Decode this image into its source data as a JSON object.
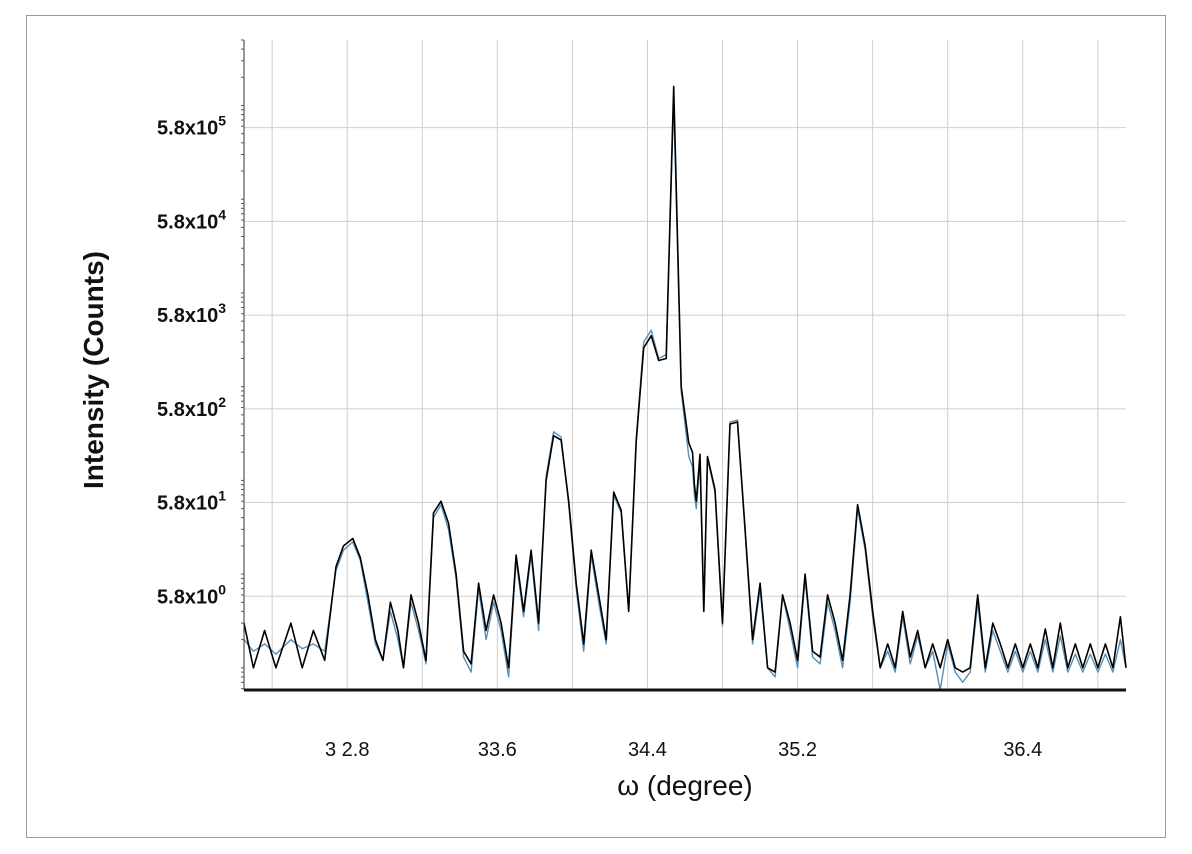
{
  "chart_data": {
    "type": "line",
    "title": "",
    "xlabel": "ω (degree)",
    "ylabel": "Intensity (Counts)",
    "xlim": [
      32.25,
      36.95
    ],
    "x_ticks": [
      {
        "value": 32.8,
        "label": "3 2.8"
      },
      {
        "value": 33.6,
        "label": "33.6"
      },
      {
        "value": 34.4,
        "label": "34.4"
      },
      {
        "value": 35.2,
        "label": "35.2"
      },
      {
        "value": 36.4,
        "label": "36.4"
      }
    ],
    "y_scale": "log",
    "ylim": [
      0.58,
      5000000
    ],
    "y_ticks": [
      {
        "value": 5.8,
        "base": "5.8x10",
        "exp": "0"
      },
      {
        "value": 58,
        "base": "5.8x10",
        "exp": "1"
      },
      {
        "value": 580,
        "base": "5.8x10",
        "exp": "2"
      },
      {
        "value": 5800,
        "base": "5.8x10",
        "exp": "3"
      },
      {
        "value": 58000,
        "base": "5.8x10",
        "exp": "4"
      },
      {
        "value": 580000,
        "base": "5.8x10",
        "exp": "5"
      }
    ],
    "grid": true,
    "series": [
      {
        "color": "#000000",
        "x": [
          32.25,
          32.3,
          32.36,
          32.42,
          32.5,
          32.56,
          32.62,
          32.68,
          32.74,
          32.78,
          32.83,
          32.87,
          32.91,
          32.95,
          32.99,
          33.03,
          33.07,
          33.1,
          33.14,
          33.18,
          33.22,
          33.26,
          33.3,
          33.34,
          33.38,
          33.42,
          33.46,
          33.5,
          33.54,
          33.58,
          33.62,
          33.66,
          33.7,
          33.74,
          33.78,
          33.82,
          33.86,
          33.9,
          33.94,
          33.98,
          34.02,
          34.06,
          34.1,
          34.14,
          34.18,
          34.22,
          34.26,
          34.3,
          34.34,
          34.38,
          34.42,
          34.46,
          34.5,
          34.54,
          34.58,
          34.62,
          34.64,
          34.65,
          34.66,
          34.68,
          34.7,
          34.72,
          34.76,
          34.8,
          34.84,
          34.88,
          34.92,
          34.96,
          35.0,
          35.04,
          35.08,
          35.12,
          35.16,
          35.2,
          35.24,
          35.28,
          35.32,
          35.36,
          35.4,
          35.44,
          35.48,
          35.52,
          35.56,
          35.6,
          35.64,
          35.68,
          35.72,
          35.76,
          35.8,
          35.84,
          35.88,
          35.92,
          35.96,
          36.0,
          36.04,
          36.08,
          36.12,
          36.16,
          36.2,
          36.24,
          36.28,
          36.32,
          36.36,
          36.4,
          36.44,
          36.48,
          36.52,
          36.56,
          36.6,
          36.64,
          36.68,
          36.72,
          36.76,
          36.8,
          36.84,
          36.88,
          36.92,
          36.95
        ],
        "y": [
          3.0,
          1.0,
          2.5,
          1.0,
          3.0,
          1.0,
          2.5,
          1.2,
          12,
          20,
          24,
          15,
          6,
          2,
          1.2,
          5,
          2.5,
          1,
          6,
          3,
          1.2,
          45,
          60,
          35,
          10,
          1.5,
          1.1,
          8,
          2.5,
          6,
          3,
          1,
          16,
          4,
          18,
          3,
          100,
          300,
          270,
          60,
          8,
          1.8,
          18,
          6,
          2,
          75,
          48,
          4,
          260,
          2600,
          3500,
          1900,
          2000,
          1600000,
          1000,
          250,
          200,
          90,
          60,
          190,
          4,
          180,
          80,
          3,
          400,
          420,
          30,
          2,
          8,
          1,
          0.9,
          6,
          3,
          1.2,
          10,
          1.5,
          1.3,
          6,
          3,
          1.2,
          6,
          55,
          20,
          4,
          1.0,
          1.8,
          1.0,
          4,
          1.3,
          2.5,
          1.0,
          1.8,
          1.0,
          2.0,
          1.0,
          0.9,
          1.0,
          6,
          1.0,
          3,
          1.8,
          1.0,
          1.8,
          1.0,
          1.8,
          1.0,
          2.6,
          1.0,
          3,
          1.0,
          1.8,
          1.0,
          1.8,
          1.0,
          1.8,
          1.0,
          3.5,
          1.0
        ]
      },
      {
        "color": "#5a8fb5",
        "x": [
          32.25,
          32.3,
          32.36,
          32.42,
          32.5,
          32.56,
          32.62,
          32.68,
          32.74,
          32.78,
          32.83,
          32.87,
          32.91,
          32.95,
          32.99,
          33.03,
          33.07,
          33.1,
          33.14,
          33.18,
          33.22,
          33.26,
          33.3,
          33.34,
          33.38,
          33.42,
          33.46,
          33.5,
          33.54,
          33.58,
          33.62,
          33.66,
          33.7,
          33.74,
          33.78,
          33.82,
          33.86,
          33.9,
          33.94,
          33.98,
          34.02,
          34.06,
          34.1,
          34.14,
          34.18,
          34.22,
          34.26,
          34.3,
          34.34,
          34.38,
          34.42,
          34.46,
          34.5,
          34.54,
          34.58,
          34.62,
          34.64,
          34.65,
          34.66,
          34.68,
          34.7,
          34.72,
          34.76,
          34.8,
          34.84,
          34.88,
          34.92,
          34.96,
          35.0,
          35.04,
          35.08,
          35.12,
          35.16,
          35.2,
          35.24,
          35.28,
          35.32,
          35.36,
          35.4,
          35.44,
          35.48,
          35.52,
          35.56,
          35.6,
          35.64,
          35.68,
          35.72,
          35.76,
          35.8,
          35.84,
          35.88,
          35.92,
          35.96,
          36.0,
          36.04,
          36.08,
          36.12,
          36.16,
          36.2,
          36.24,
          36.28,
          36.32,
          36.36,
          36.4,
          36.44,
          36.48,
          36.52,
          36.56,
          36.6,
          36.64,
          36.68,
          36.72,
          36.76,
          36.8,
          36.84,
          36.88,
          36.92,
          36.95
        ],
        "y": [
          2.0,
          1.5,
          1.8,
          1.4,
          2.0,
          1.6,
          1.8,
          1.5,
          11,
          18,
          22,
          14,
          5,
          1.8,
          1.2,
          4,
          2,
          1,
          5,
          2.5,
          1.1,
          40,
          55,
          30,
          9,
          1.3,
          0.9,
          7,
          2,
          5,
          2.5,
          0.8,
          14,
          3.5,
          16,
          2.5,
          110,
          330,
          290,
          55,
          7,
          1.5,
          16,
          5,
          1.8,
          70,
          45,
          4,
          280,
          3000,
          4000,
          2000,
          2200,
          1200000,
          900,
          180,
          140,
          70,
          50,
          160,
          4,
          170,
          75,
          2.8,
          420,
          440,
          28,
          1.8,
          7,
          1.0,
          0.8,
          6,
          2.5,
          1.0,
          9,
          1.3,
          1.1,
          5,
          2.5,
          1.0,
          5,
          50,
          18,
          3.5,
          1.0,
          1.5,
          0.9,
          3.5,
          1.1,
          2.2,
          1.0,
          1.5,
          0.55,
          1.8,
          0.9,
          0.7,
          0.9,
          5,
          0.9,
          2.5,
          1.5,
          0.9,
          1.5,
          0.9,
          1.5,
          0.9,
          2.0,
          0.9,
          2.2,
          0.9,
          1.4,
          0.9,
          1.4,
          0.9,
          1.4,
          0.9,
          2.0,
          1.0
        ]
      }
    ]
  }
}
